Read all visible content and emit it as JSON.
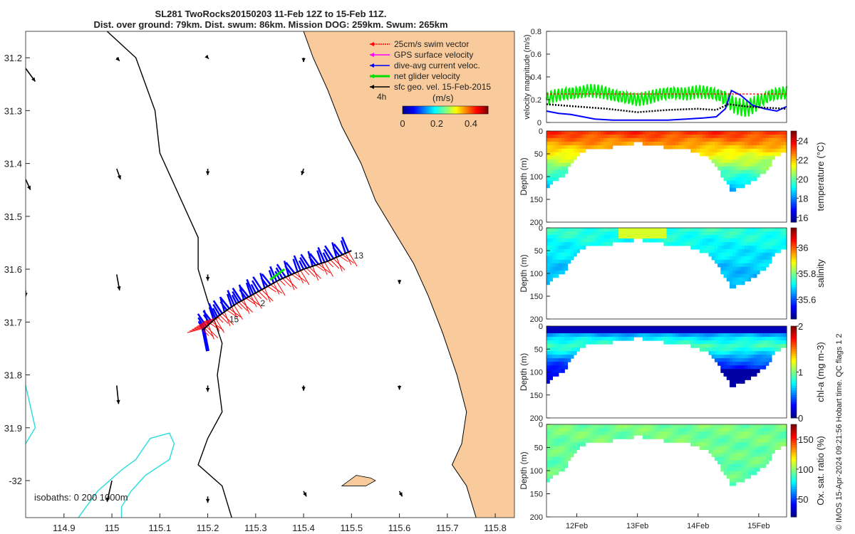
{
  "title_line1": "SL281 TwoRocks20150203 11-Feb 12Z to 15-Feb 11Z.",
  "title_line2": "Dist. over ground: 79km. Dist. swum: 86km. Mission DOG: 259km. Swum: 265km",
  "stamp": "© IMOS 15-Apr-2024 09:21:56 Hobart time. QC flags 1  2",
  "colors": {
    "land": "#f9cb9c",
    "coast": "#000000",
    "isobath": "#33dddd"
  },
  "chart_data": [
    {
      "type": "scatter",
      "name": "map",
      "xlim": [
        114.82,
        115.84
      ],
      "ylim": [
        -32.07,
        -31.15
      ],
      "xticks": [
        "114.9",
        "115",
        "115.1",
        "115.2",
        "115.3",
        "115.4",
        "115.5",
        "115.6",
        "115.7",
        "115.8"
      ],
      "xtick_values": [
        114.9,
        115.0,
        115.1,
        115.2,
        115.3,
        115.4,
        115.5,
        115.6,
        115.7,
        115.8
      ],
      "yticks": [
        "31.2",
        "31.3",
        "31.4",
        "31.5",
        "31.6",
        "31.7",
        "31.8",
        "31.9",
        "-32"
      ],
      "ytick_values": [
        -31.2,
        -31.3,
        -31.4,
        -31.5,
        -31.6,
        -31.7,
        -31.8,
        -31.9,
        -32.0
      ],
      "legend": [
        {
          "label": "25cm/s swim vector",
          "color": "#ff0000"
        },
        {
          "label": "GPS surface velocity",
          "color": "#ff00ff"
        },
        {
          "label": "dive-avg current veloc.",
          "color": "#0000ff"
        },
        {
          "label": "net glider velocity",
          "color": "#00dd00"
        },
        {
          "label": "sfc geo. vel. 15-Feb-2015",
          "color": "#000000"
        }
      ],
      "scale_label": "4h",
      "colorbar": {
        "label": "(m/s)",
        "ticks": [
          "0",
          "0.2",
          "0.4"
        ],
        "range": [
          0,
          0.5
        ]
      },
      "isobath_label": "isobaths: 0   200  1000m",
      "track": [
        [
          115.19,
          -31.715
        ],
        [
          115.22,
          -31.69
        ],
        [
          115.26,
          -31.665
        ],
        [
          115.3,
          -31.645
        ],
        [
          115.35,
          -31.62
        ],
        [
          115.4,
          -31.6
        ],
        [
          115.45,
          -31.585
        ],
        [
          115.5,
          -31.565
        ]
      ],
      "track_labels": [
        {
          "text": "15",
          "x": 115.245,
          "y": -31.7
        },
        {
          "text": "2",
          "x": 115.31,
          "y": -31.67
        },
        {
          "text": "13",
          "x": 115.505,
          "y": -31.58
        }
      ],
      "geo_vectors": [
        {
          "x": 114.82,
          "y": -31.22,
          "u": 0.02,
          "v": -0.025
        },
        {
          "x": 115.01,
          "y": -31.2,
          "u": 0.006,
          "v": -0.006
        },
        {
          "x": 115.2,
          "y": -31.2,
          "u": 0.002,
          "v": -0.002
        },
        {
          "x": 115.4,
          "y": -31.2,
          "u": 0.0,
          "v": -0.008
        },
        {
          "x": 114.82,
          "y": -31.43,
          "u": 0.01,
          "v": -0.02
        },
        {
          "x": 115.01,
          "y": -31.41,
          "u": 0.008,
          "v": -0.02
        },
        {
          "x": 115.2,
          "y": -31.41,
          "u": 0.0,
          "v": -0.012
        },
        {
          "x": 115.4,
          "y": -31.41,
          "u": -0.004,
          "v": -0.012
        },
        {
          "x": 114.82,
          "y": -31.64,
          "u": 0.0,
          "v": -0.012
        },
        {
          "x": 115.01,
          "y": -31.61,
          "u": 0.006,
          "v": -0.03
        },
        {
          "x": 115.2,
          "y": -31.61,
          "u": 0.0,
          "v": -0.012
        },
        {
          "x": 115.6,
          "y": -31.62,
          "u": 0.0,
          "v": -0.008
        },
        {
          "x": 115.01,
          "y": -31.82,
          "u": 0.004,
          "v": -0.035
        },
        {
          "x": 115.2,
          "y": -31.82,
          "u": 0.0,
          "v": -0.012
        },
        {
          "x": 115.4,
          "y": -31.82,
          "u": 0.0,
          "v": -0.01
        },
        {
          "x": 115.6,
          "y": -31.82,
          "u": 0.0,
          "v": -0.008
        },
        {
          "x": 115.0,
          "y": -32.0,
          "u": -0.01,
          "v": -0.04
        },
        {
          "x": 115.2,
          "y": -32.03,
          "u": 0.0,
          "v": -0.012
        },
        {
          "x": 115.4,
          "y": -32.02,
          "u": 0.006,
          "v": -0.01
        },
        {
          "x": 115.6,
          "y": -32.02,
          "u": 0.006,
          "v": -0.01
        }
      ],
      "coastline": [
        [
          115.4,
          -31.15
        ],
        [
          115.42,
          -31.2
        ],
        [
          115.45,
          -31.26
        ],
        [
          115.48,
          -31.33
        ],
        [
          115.52,
          -31.4
        ],
        [
          115.55,
          -31.47
        ],
        [
          115.59,
          -31.53
        ],
        [
          115.63,
          -31.59
        ],
        [
          115.66,
          -31.65
        ],
        [
          115.69,
          -31.72
        ],
        [
          115.72,
          -31.8
        ],
        [
          115.74,
          -31.87
        ],
        [
          115.73,
          -31.93
        ],
        [
          115.71,
          -31.97
        ],
        [
          115.74,
          -32.01
        ],
        [
          115.76,
          -32.07
        ]
      ],
      "shelf_line": [
        [
          114.99,
          -31.15
        ],
        [
          115.05,
          -31.2
        ],
        [
          115.09,
          -31.3
        ],
        [
          115.1,
          -31.38
        ],
        [
          115.14,
          -31.46
        ],
        [
          115.18,
          -31.54
        ],
        [
          115.18,
          -31.6
        ],
        [
          115.2,
          -31.66
        ],
        [
          115.23,
          -31.74
        ],
        [
          115.22,
          -31.8
        ],
        [
          115.23,
          -31.87
        ],
        [
          115.2,
          -31.92
        ],
        [
          115.18,
          -31.97
        ],
        [
          115.23,
          -32.01
        ],
        [
          115.25,
          -32.07
        ]
      ],
      "island": [
        [
          115.48,
          -32.01
        ],
        [
          115.51,
          -31.99
        ],
        [
          115.54,
          -31.995
        ],
        [
          115.55,
          -32.0
        ],
        [
          115.53,
          -32.01
        ],
        [
          115.48,
          -32.01
        ]
      ]
    },
    {
      "type": "line",
      "name": "velocity",
      "ylabel": "velocity magnitude (m/s)",
      "ylim": [
        0,
        0.8
      ],
      "yticks": [
        "0",
        "0.2",
        "0.4",
        "0.6",
        "0.8"
      ],
      "ytick_values": [
        0,
        0.2,
        0.4,
        0.6,
        0.8
      ],
      "xlim": [
        11.5,
        15.46
      ],
      "series": [
        {
          "color": "#00ee00",
          "x": [
            11.5,
            11.6,
            11.8,
            12.0,
            12.2,
            12.4,
            12.6,
            12.8,
            13.0,
            13.2,
            13.4,
            13.6,
            13.8,
            14.0,
            14.2,
            14.4,
            14.6,
            14.8,
            15.0,
            15.2,
            15.4
          ],
          "y": [
            0.2,
            0.23,
            0.25,
            0.26,
            0.28,
            0.27,
            0.24,
            0.22,
            0.2,
            0.22,
            0.25,
            0.26,
            0.25,
            0.27,
            0.26,
            0.23,
            0.15,
            0.12,
            0.18,
            0.24,
            0.26
          ]
        },
        {
          "color": "#0000ff",
          "x": [
            11.5,
            11.7,
            11.9,
            12.1,
            12.3,
            12.6,
            12.9,
            13.2,
            13.5,
            13.8,
            14.1,
            14.3,
            14.45,
            14.55,
            14.7,
            14.9,
            15.1,
            15.3,
            15.46
          ],
          "y": [
            0.1,
            0.08,
            0.07,
            0.05,
            0.03,
            0.02,
            0.02,
            0.02,
            0.02,
            0.03,
            0.04,
            0.05,
            0.12,
            0.28,
            0.24,
            0.15,
            0.12,
            0.1,
            0.14
          ]
        },
        {
          "color": "#000000",
          "x": [
            11.5,
            12.0,
            12.5,
            13.0,
            13.5,
            14.0,
            14.3,
            14.5,
            14.8,
            15.1,
            15.46
          ],
          "y": [
            0.16,
            0.14,
            0.12,
            0.09,
            0.11,
            0.12,
            0.11,
            0.16,
            0.14,
            0.13,
            0.12
          ]
        },
        {
          "color": "#ff0000",
          "x": [
            11.5,
            15.46
          ],
          "y": [
            0.25,
            0.25
          ]
        }
      ]
    },
    {
      "type": "heatmap",
      "name": "temperature",
      "ylabel": "Depth (m)",
      "clabel": "temperature (°C)",
      "crange": [
        15.5,
        25
      ],
      "cticks": [
        "24",
        "22",
        "20",
        "18",
        "16"
      ],
      "ctick_values": [
        24,
        22,
        20,
        18,
        16
      ],
      "ylim": [
        0,
        200
      ],
      "yticks": [
        "0",
        "50",
        "100",
        "150",
        "200"
      ],
      "ytick_values": [
        0,
        50,
        100,
        150,
        200
      ],
      "xlim": [
        11.5,
        15.46
      ],
      "bottom_depth": {
        "x": [
          11.5,
          11.8,
          12.0,
          12.2,
          12.5,
          12.8,
          13.0,
          13.2,
          13.5,
          13.8,
          14.0,
          14.2,
          14.4,
          14.55,
          14.7,
          14.9,
          15.1,
          15.3,
          15.46
        ],
        "y": [
          125,
          95,
          55,
          40,
          36,
          32,
          24,
          30,
          36,
          40,
          48,
          60,
          100,
          130,
          125,
          110,
          90,
          55,
          45
        ]
      },
      "value_stops": [
        [
          0,
          23.5
        ],
        [
          25,
          22.5
        ],
        [
          60,
          21.0
        ],
        [
          100,
          19.5
        ],
        [
          130,
          18.0
        ]
      ]
    },
    {
      "type": "heatmap",
      "name": "salinity",
      "ylabel": "Depth (m)",
      "clabel": "salinity",
      "crange": [
        35.45,
        36.15
      ],
      "cticks": [
        "36",
        "35.8",
        "35.6"
      ],
      "ctick_values": [
        36.0,
        35.8,
        35.6
      ],
      "ylim": [
        0,
        200
      ],
      "yticks": [
        "0",
        "50",
        "100",
        "150",
        "200"
      ],
      "ytick_values": [
        0,
        50,
        100,
        150,
        200
      ],
      "xlim": [
        11.5,
        15.46
      ],
      "value_stops": [
        [
          0,
          35.75
        ],
        [
          30,
          35.72
        ],
        [
          80,
          35.68
        ],
        [
          130,
          35.65
        ]
      ]
    },
    {
      "type": "heatmap",
      "name": "chlorophyll",
      "ylabel": "Depth (m)",
      "clabel": "chl-a (mg m-3)",
      "crange": [
        0,
        2
      ],
      "cticks": [
        "2",
        "1",
        "0"
      ],
      "ctick_values": [
        2,
        1,
        0
      ],
      "ylim": [
        0,
        200
      ],
      "yticks": [
        "0",
        "50",
        "100",
        "150",
        "200"
      ],
      "ytick_values": [
        0,
        50,
        100,
        150,
        200
      ],
      "xlim": [
        11.5,
        15.46
      ],
      "value_stops": [
        [
          0,
          0.15
        ],
        [
          25,
          0.7
        ],
        [
          45,
          0.9
        ],
        [
          70,
          0.5
        ],
        [
          110,
          0.15
        ]
      ]
    },
    {
      "type": "heatmap",
      "name": "oxygen",
      "ylabel": "Depth (m)",
      "clabel": "Ox. sat. ratio (%)",
      "crange": [
        20,
        175
      ],
      "cticks": [
        "150",
        "100",
        "50"
      ],
      "ctick_values": [
        150,
        100,
        50
      ],
      "ylim": [
        0,
        200
      ],
      "yticks": [
        "0",
        "50",
        "100",
        "150",
        "200"
      ],
      "ytick_values": [
        0,
        50,
        100,
        150,
        200
      ],
      "xlim": [
        11.5,
        15.46
      ],
      "xticks": [
        "12Feb",
        "13Feb",
        "14Feb",
        "15Feb"
      ],
      "xtick_values": [
        12,
        13,
        14,
        15
      ],
      "value_stops": [
        [
          0,
          96
        ],
        [
          60,
          94
        ],
        [
          130,
          92
        ]
      ]
    }
  ]
}
